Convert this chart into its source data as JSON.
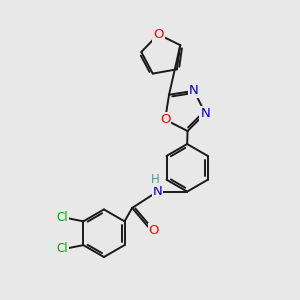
{
  "bg_color": "#e8e8e8",
  "bond_color": "#1a1a1a",
  "bond_width": 1.4,
  "atom_colors": {
    "O": "#ff0000",
    "N": "#0000cc",
    "Cl": "#00aa00",
    "H": "#4d9999",
    "C": "#1a1a1a"
  },
  "font_size": 8.5,
  "figsize": [
    3.0,
    3.0
  ],
  "dpi": 100
}
